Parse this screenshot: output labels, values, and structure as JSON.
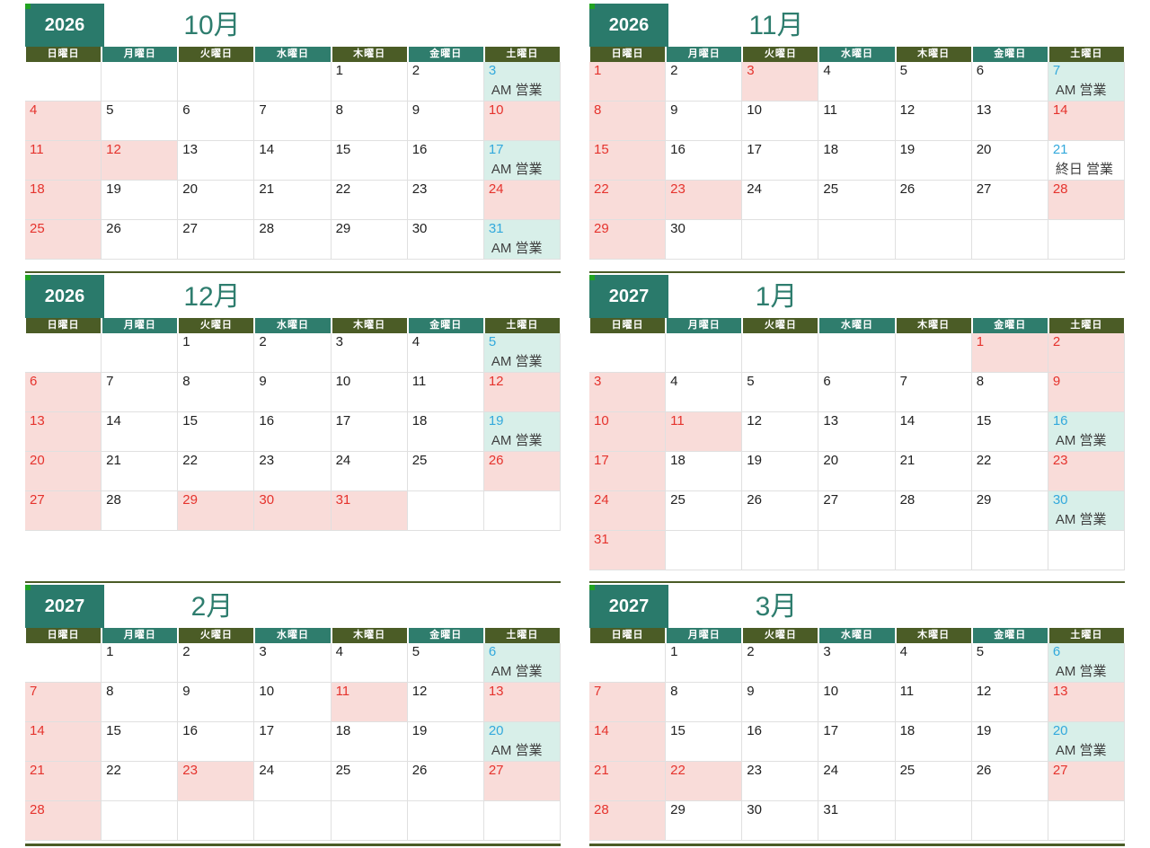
{
  "colors": {
    "olive": "#4b5c26",
    "teal": "#2f7d6d",
    "yearbox": "#2a7a6b",
    "title_text": "#2e7d6e",
    "accent_green": "#21a221",
    "pink": "#f9dcd9",
    "mint": "#d8efe9",
    "red": "#e5332d",
    "cyan": "#33a9dc",
    "date_text": "#212121",
    "note_text": "#3f3f3f",
    "grid": "#e0e0e0"
  },
  "weekday_headers": [
    "日曜日",
    "月曜日",
    "火曜日",
    "水曜日",
    "木曜日",
    "金曜日",
    "土曜日"
  ],
  "notes_legend": {
    "am_open": "AM 営業",
    "allday_open": "終日 営業"
  },
  "calendars": [
    {
      "year": "2026",
      "month": "10月",
      "weeks": [
        [
          null,
          null,
          null,
          null,
          {
            "d": "1"
          },
          {
            "d": "2"
          },
          {
            "d": "3",
            "c": "cyan",
            "bg": "mint",
            "note": "AM 営業"
          }
        ],
        [
          {
            "d": "4",
            "c": "red",
            "bg": "pink"
          },
          {
            "d": "5"
          },
          {
            "d": "6"
          },
          {
            "d": "7"
          },
          {
            "d": "8"
          },
          {
            "d": "9"
          },
          {
            "d": "10",
            "c": "red",
            "bg": "pink"
          }
        ],
        [
          {
            "d": "11",
            "c": "red",
            "bg": "pink"
          },
          {
            "d": "12",
            "c": "red",
            "bg": "pink"
          },
          {
            "d": "13"
          },
          {
            "d": "14"
          },
          {
            "d": "15"
          },
          {
            "d": "16"
          },
          {
            "d": "17",
            "c": "cyan",
            "bg": "mint",
            "note": "AM 営業"
          }
        ],
        [
          {
            "d": "18",
            "c": "red",
            "bg": "pink"
          },
          {
            "d": "19"
          },
          {
            "d": "20"
          },
          {
            "d": "21"
          },
          {
            "d": "22"
          },
          {
            "d": "23"
          },
          {
            "d": "24",
            "c": "red",
            "bg": "pink"
          }
        ],
        [
          {
            "d": "25",
            "c": "red",
            "bg": "pink"
          },
          {
            "d": "26"
          },
          {
            "d": "27"
          },
          {
            "d": "28"
          },
          {
            "d": "29"
          },
          {
            "d": "30"
          },
          {
            "d": "31",
            "c": "cyan",
            "bg": "mint",
            "note": "AM 営業"
          }
        ]
      ]
    },
    {
      "year": "2026",
      "month": "11月",
      "weeks": [
        [
          {
            "d": "1",
            "c": "red",
            "bg": "pink"
          },
          {
            "d": "2"
          },
          {
            "d": "3",
            "c": "red",
            "bg": "pink"
          },
          {
            "d": "4"
          },
          {
            "d": "5"
          },
          {
            "d": "6"
          },
          {
            "d": "7",
            "c": "cyan",
            "bg": "mint",
            "note": "AM 営業"
          }
        ],
        [
          {
            "d": "8",
            "c": "red",
            "bg": "pink"
          },
          {
            "d": "9"
          },
          {
            "d": "10"
          },
          {
            "d": "11"
          },
          {
            "d": "12"
          },
          {
            "d": "13"
          },
          {
            "d": "14",
            "c": "red",
            "bg": "pink"
          }
        ],
        [
          {
            "d": "15",
            "c": "red",
            "bg": "pink"
          },
          {
            "d": "16"
          },
          {
            "d": "17"
          },
          {
            "d": "18"
          },
          {
            "d": "19"
          },
          {
            "d": "20"
          },
          {
            "d": "21",
            "c": "cyan",
            "note": "終日 営業"
          }
        ],
        [
          {
            "d": "22",
            "c": "red",
            "bg": "pink"
          },
          {
            "d": "23",
            "c": "red",
            "bg": "pink"
          },
          {
            "d": "24"
          },
          {
            "d": "25"
          },
          {
            "d": "26"
          },
          {
            "d": "27"
          },
          {
            "d": "28",
            "c": "red",
            "bg": "pink"
          }
        ],
        [
          {
            "d": "29",
            "c": "red",
            "bg": "pink"
          },
          {
            "d": "30"
          },
          null,
          null,
          null,
          null,
          null
        ]
      ]
    },
    {
      "year": "2026",
      "month": "12月",
      "weeks": [
        [
          null,
          null,
          {
            "d": "1"
          },
          {
            "d": "2"
          },
          {
            "d": "3"
          },
          {
            "d": "4"
          },
          {
            "d": "5",
            "c": "cyan",
            "bg": "mint",
            "note": "AM 営業"
          }
        ],
        [
          {
            "d": "6",
            "c": "red",
            "bg": "pink"
          },
          {
            "d": "7"
          },
          {
            "d": "8"
          },
          {
            "d": "9"
          },
          {
            "d": "10"
          },
          {
            "d": "11"
          },
          {
            "d": "12",
            "c": "red",
            "bg": "pink"
          }
        ],
        [
          {
            "d": "13",
            "c": "red",
            "bg": "pink"
          },
          {
            "d": "14"
          },
          {
            "d": "15"
          },
          {
            "d": "16"
          },
          {
            "d": "17"
          },
          {
            "d": "18"
          },
          {
            "d": "19",
            "c": "cyan",
            "bg": "mint",
            "note": "AM 営業"
          }
        ],
        [
          {
            "d": "20",
            "c": "red",
            "bg": "pink"
          },
          {
            "d": "21"
          },
          {
            "d": "22"
          },
          {
            "d": "23"
          },
          {
            "d": "24"
          },
          {
            "d": "25"
          },
          {
            "d": "26",
            "c": "red",
            "bg": "pink"
          }
        ],
        [
          {
            "d": "27",
            "c": "red",
            "bg": "pink"
          },
          {
            "d": "28"
          },
          {
            "d": "29",
            "c": "red",
            "bg": "pink"
          },
          {
            "d": "30",
            "c": "red",
            "bg": "pink"
          },
          {
            "d": "31",
            "c": "red",
            "bg": "pink"
          },
          null,
          null
        ]
      ]
    },
    {
      "year": "2027",
      "month": "1月",
      "weeks": [
        [
          null,
          null,
          null,
          null,
          null,
          {
            "d": "1",
            "c": "red",
            "bg": "pink"
          },
          {
            "d": "2",
            "c": "red",
            "bg": "pink"
          }
        ],
        [
          {
            "d": "3",
            "c": "red",
            "bg": "pink"
          },
          {
            "d": "4"
          },
          {
            "d": "5"
          },
          {
            "d": "6"
          },
          {
            "d": "7"
          },
          {
            "d": "8"
          },
          {
            "d": "9",
            "c": "red",
            "bg": "pink"
          }
        ],
        [
          {
            "d": "10",
            "c": "red",
            "bg": "pink"
          },
          {
            "d": "11",
            "c": "red",
            "bg": "pink"
          },
          {
            "d": "12"
          },
          {
            "d": "13"
          },
          {
            "d": "14"
          },
          {
            "d": "15"
          },
          {
            "d": "16",
            "c": "cyan",
            "bg": "mint",
            "note": "AM 営業"
          }
        ],
        [
          {
            "d": "17",
            "c": "red",
            "bg": "pink"
          },
          {
            "d": "18"
          },
          {
            "d": "19"
          },
          {
            "d": "20"
          },
          {
            "d": "21"
          },
          {
            "d": "22"
          },
          {
            "d": "23",
            "c": "red",
            "bg": "pink"
          }
        ],
        [
          {
            "d": "24",
            "c": "red",
            "bg": "pink"
          },
          {
            "d": "25"
          },
          {
            "d": "26"
          },
          {
            "d": "27"
          },
          {
            "d": "28"
          },
          {
            "d": "29"
          },
          {
            "d": "30",
            "c": "cyan",
            "bg": "mint",
            "note": "AM 営業"
          }
        ],
        [
          {
            "d": "31",
            "c": "red",
            "bg": "pink"
          },
          null,
          null,
          null,
          null,
          null,
          null
        ]
      ]
    },
    {
      "year": "2027",
      "month": "2月",
      "weeks": [
        [
          null,
          {
            "d": "1"
          },
          {
            "d": "2"
          },
          {
            "d": "3"
          },
          {
            "d": "4"
          },
          {
            "d": "5"
          },
          {
            "d": "6",
            "c": "cyan",
            "bg": "mint",
            "note": "AM 営業"
          }
        ],
        [
          {
            "d": "7",
            "c": "red",
            "bg": "pink"
          },
          {
            "d": "8"
          },
          {
            "d": "9"
          },
          {
            "d": "10"
          },
          {
            "d": "11",
            "c": "red",
            "bg": "pink"
          },
          {
            "d": "12"
          },
          {
            "d": "13",
            "c": "red",
            "bg": "pink"
          }
        ],
        [
          {
            "d": "14",
            "c": "red",
            "bg": "pink"
          },
          {
            "d": "15"
          },
          {
            "d": "16"
          },
          {
            "d": "17"
          },
          {
            "d": "18"
          },
          {
            "d": "19"
          },
          {
            "d": "20",
            "c": "cyan",
            "bg": "mint",
            "note": "AM 営業"
          }
        ],
        [
          {
            "d": "21",
            "c": "red",
            "bg": "pink"
          },
          {
            "d": "22"
          },
          {
            "d": "23",
            "c": "red",
            "bg": "pink"
          },
          {
            "d": "24"
          },
          {
            "d": "25"
          },
          {
            "d": "26"
          },
          {
            "d": "27",
            "c": "red",
            "bg": "pink"
          }
        ],
        [
          {
            "d": "28",
            "c": "red",
            "bg": "pink"
          },
          null,
          null,
          null,
          null,
          null,
          null
        ]
      ]
    },
    {
      "year": "2027",
      "month": "3月",
      "weeks": [
        [
          null,
          {
            "d": "1"
          },
          {
            "d": "2"
          },
          {
            "d": "3"
          },
          {
            "d": "4"
          },
          {
            "d": "5"
          },
          {
            "d": "6",
            "c": "cyan",
            "bg": "mint",
            "note": "AM 営業"
          }
        ],
        [
          {
            "d": "7",
            "c": "red",
            "bg": "pink"
          },
          {
            "d": "8"
          },
          {
            "d": "9"
          },
          {
            "d": "10"
          },
          {
            "d": "11"
          },
          {
            "d": "12"
          },
          {
            "d": "13",
            "c": "red",
            "bg": "pink"
          }
        ],
        [
          {
            "d": "14",
            "c": "red",
            "bg": "pink"
          },
          {
            "d": "15"
          },
          {
            "d": "16"
          },
          {
            "d": "17"
          },
          {
            "d": "18"
          },
          {
            "d": "19"
          },
          {
            "d": "20",
            "c": "cyan",
            "bg": "mint",
            "note": "AM 営業"
          }
        ],
        [
          {
            "d": "21",
            "c": "red",
            "bg": "pink"
          },
          {
            "d": "22",
            "c": "red",
            "bg": "pink"
          },
          {
            "d": "23"
          },
          {
            "d": "24"
          },
          {
            "d": "25"
          },
          {
            "d": "26"
          },
          {
            "d": "27",
            "c": "red",
            "bg": "pink"
          }
        ],
        [
          {
            "d": "28",
            "c": "red",
            "bg": "pink"
          },
          {
            "d": "29"
          },
          {
            "d": "30"
          },
          {
            "d": "31"
          },
          null,
          null,
          null
        ]
      ]
    }
  ]
}
